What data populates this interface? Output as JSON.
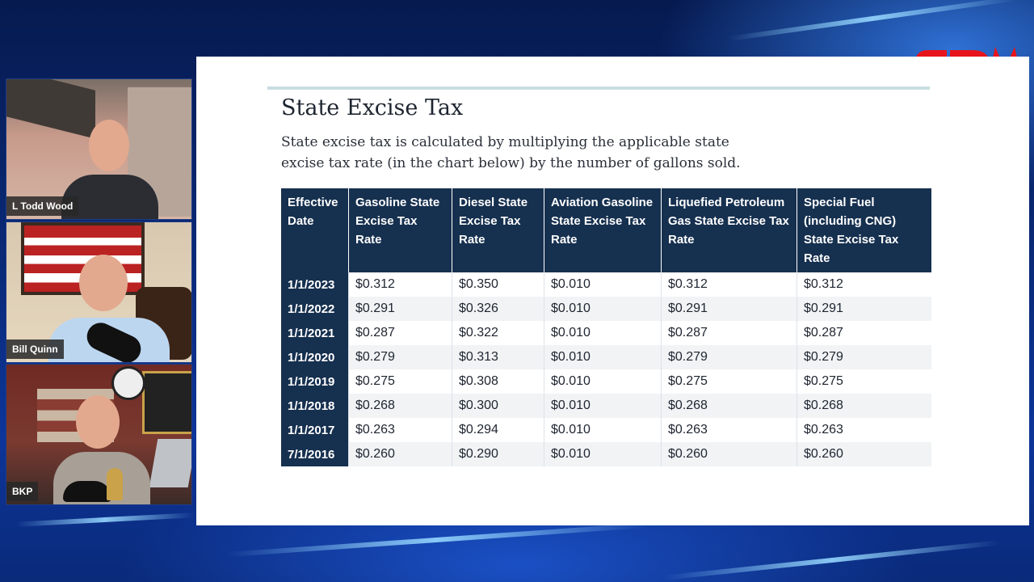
{
  "brand": {
    "logo_text": "CDM",
    "logo_color": "#e8141b"
  },
  "panelists": [
    {
      "name": "L Todd Wood"
    },
    {
      "name": "Bill Quinn"
    },
    {
      "name": "BKP"
    }
  ],
  "slide": {
    "title": "State Excise Tax",
    "description": "State excise tax is calculated by multiplying the applicable state excise tax rate (in the chart below) by the number of gallons sold.",
    "columns": [
      "Effective Date",
      "Gasoline State Excise Tax Rate",
      "Diesel State Excise Tax Rate",
      "Aviation Gasoline State Excise Tax Rate",
      "Liquefied Petroleum Gas State Excise Tax Rate",
      "Special Fuel (including CNG) State Excise Tax Rate"
    ],
    "rows": [
      [
        "1/1/2023",
        "$0.312",
        "$0.350",
        "$0.010",
        "$0.312",
        "$0.312"
      ],
      [
        "1/1/2022",
        "$0.291",
        "$0.326",
        "$0.010",
        "$0.291",
        "$0.291"
      ],
      [
        "1/1/2021",
        "$0.287",
        "$0.322",
        "$0.010",
        "$0.287",
        "$0.287"
      ],
      [
        "1/1/2020",
        "$0.279",
        "$0.313",
        "$0.010",
        "$0.279",
        "$0.279"
      ],
      [
        "1/1/2019",
        "$0.275",
        "$0.308",
        "$0.010",
        "$0.275",
        "$0.275"
      ],
      [
        "1/1/2018",
        "$0.268",
        "$0.300",
        "$0.010",
        "$0.268",
        "$0.268"
      ],
      [
        "1/1/2017",
        "$0.263",
        "$0.294",
        "$0.010",
        "$0.263",
        "$0.263"
      ],
      [
        "7/1/2016",
        "$0.260",
        "$0.290",
        "$0.010",
        "$0.260",
        "$0.260"
      ]
    ]
  }
}
